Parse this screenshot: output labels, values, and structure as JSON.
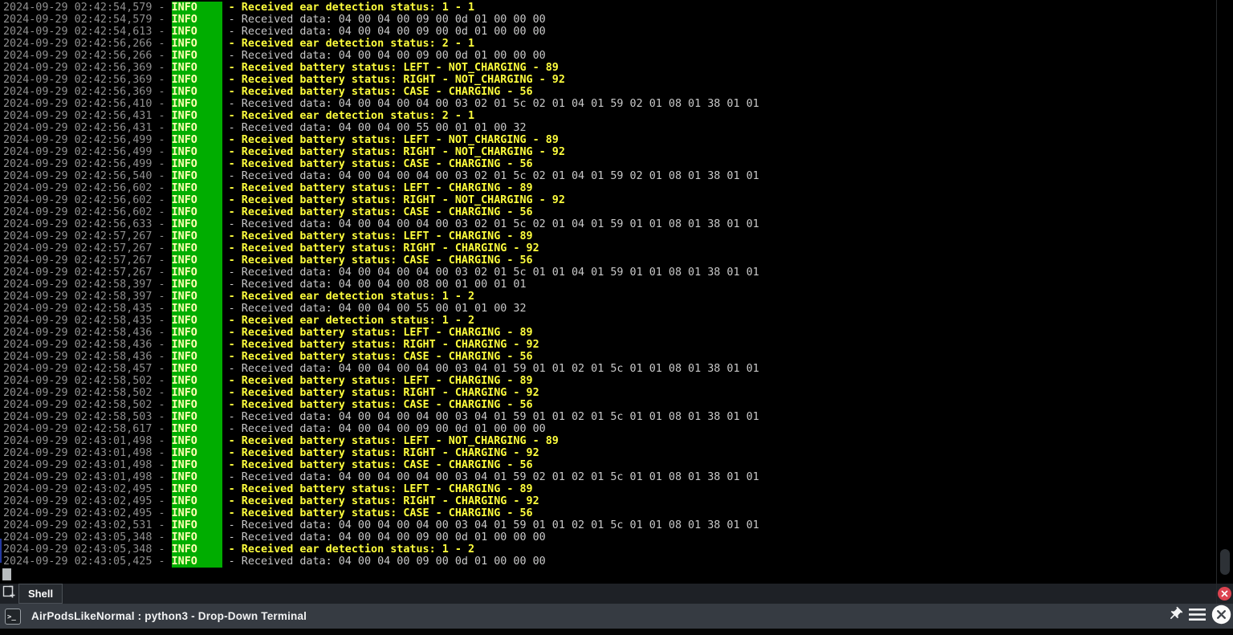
{
  "terminal": {
    "date": "2024-09-29",
    "level_label": "INFO",
    "rows": [
      {
        "t": "02:42:54,579",
        "k": "y",
        "m": "Received ear detection status: 1 - 1"
      },
      {
        "t": "02:42:54,579",
        "k": "g",
        "m": "Received data: 04 00 04 00 09 00 0d 01 00 00 00"
      },
      {
        "t": "02:42:54,613",
        "k": "g",
        "m": "Received data: 04 00 04 00 09 00 0d 01 00 00 00"
      },
      {
        "t": "02:42:56,266",
        "k": "y",
        "m": "Received ear detection status: 2 - 1"
      },
      {
        "t": "02:42:56,266",
        "k": "g",
        "m": "Received data: 04 00 04 00 09 00 0d 01 00 00 00"
      },
      {
        "t": "02:42:56,369",
        "k": "y",
        "m": "Received battery status: LEFT - NOT_CHARGING - 89"
      },
      {
        "t": "02:42:56,369",
        "k": "y",
        "m": "Received battery status: RIGHT - NOT_CHARGING - 92"
      },
      {
        "t": "02:42:56,369",
        "k": "y",
        "m": "Received battery status: CASE - CHARGING - 56"
      },
      {
        "t": "02:42:56,410",
        "k": "g",
        "m": "Received data: 04 00 04 00 04 00 03 02 01 5c 02 01 04 01 59 02 01 08 01 38 01 01"
      },
      {
        "t": "02:42:56,431",
        "k": "y",
        "m": "Received ear detection status: 2 - 1"
      },
      {
        "t": "02:42:56,431",
        "k": "g",
        "m": "Received data: 04 00 04 00 55 00 01 01 00 32"
      },
      {
        "t": "02:42:56,499",
        "k": "y",
        "m": "Received battery status: LEFT - NOT_CHARGING - 89"
      },
      {
        "t": "02:42:56,499",
        "k": "y",
        "m": "Received battery status: RIGHT - NOT_CHARGING - 92"
      },
      {
        "t": "02:42:56,499",
        "k": "y",
        "m": "Received battery status: CASE - CHARGING - 56"
      },
      {
        "t": "02:42:56,540",
        "k": "g",
        "m": "Received data: 04 00 04 00 04 00 03 02 01 5c 02 01 04 01 59 02 01 08 01 38 01 01"
      },
      {
        "t": "02:42:56,602",
        "k": "y",
        "m": "Received battery status: LEFT - CHARGING - 89"
      },
      {
        "t": "02:42:56,602",
        "k": "y",
        "m": "Received battery status: RIGHT - NOT_CHARGING - 92"
      },
      {
        "t": "02:42:56,602",
        "k": "y",
        "m": "Received battery status: CASE - CHARGING - 56"
      },
      {
        "t": "02:42:56,633",
        "k": "g",
        "m": "Received data: 04 00 04 00 04 00 03 02 01 5c 02 01 04 01 59 01 01 08 01 38 01 01"
      },
      {
        "t": "02:42:57,267",
        "k": "y",
        "m": "Received battery status: LEFT - CHARGING - 89"
      },
      {
        "t": "02:42:57,267",
        "k": "y",
        "m": "Received battery status: RIGHT - CHARGING - 92"
      },
      {
        "t": "02:42:57,267",
        "k": "y",
        "m": "Received battery status: CASE - CHARGING - 56"
      },
      {
        "t": "02:42:57,267",
        "k": "g",
        "m": "Received data: 04 00 04 00 04 00 03 02 01 5c 01 01 04 01 59 01 01 08 01 38 01 01"
      },
      {
        "t": "02:42:58,397",
        "k": "g",
        "m": "Received data: 04 00 04 00 08 00 01 00 01 01"
      },
      {
        "t": "02:42:58,397",
        "k": "y",
        "m": "Received ear detection status: 1 - 2"
      },
      {
        "t": "02:42:58,435",
        "k": "g",
        "m": "Received data: 04 00 04 00 55 00 01 01 00 32"
      },
      {
        "t": "02:42:58,435",
        "k": "y",
        "m": "Received ear detection status: 1 - 2"
      },
      {
        "t": "02:42:58,436",
        "k": "y",
        "m": "Received battery status: LEFT - CHARGING - 89"
      },
      {
        "t": "02:42:58,436",
        "k": "y",
        "m": "Received battery status: RIGHT - CHARGING - 92"
      },
      {
        "t": "02:42:58,436",
        "k": "y",
        "m": "Received battery status: CASE - CHARGING - 56"
      },
      {
        "t": "02:42:58,457",
        "k": "g",
        "m": "Received data: 04 00 04 00 04 00 03 04 01 59 01 01 02 01 5c 01 01 08 01 38 01 01"
      },
      {
        "t": "02:42:58,502",
        "k": "y",
        "m": "Received battery status: LEFT - CHARGING - 89"
      },
      {
        "t": "02:42:58,502",
        "k": "y",
        "m": "Received battery status: RIGHT - CHARGING - 92"
      },
      {
        "t": "02:42:58,502",
        "k": "y",
        "m": "Received battery status: CASE - CHARGING - 56"
      },
      {
        "t": "02:42:58,503",
        "k": "g",
        "m": "Received data: 04 00 04 00 04 00 03 04 01 59 01 01 02 01 5c 01 01 08 01 38 01 01"
      },
      {
        "t": "02:42:58,617",
        "k": "g",
        "m": "Received data: 04 00 04 00 09 00 0d 01 00 00 00"
      },
      {
        "t": "02:43:01,498",
        "k": "y",
        "m": "Received battery status: LEFT - NOT_CHARGING - 89"
      },
      {
        "t": "02:43:01,498",
        "k": "y",
        "m": "Received battery status: RIGHT - CHARGING - 92"
      },
      {
        "t": "02:43:01,498",
        "k": "y",
        "m": "Received battery status: CASE - CHARGING - 56"
      },
      {
        "t": "02:43:01,498",
        "k": "g",
        "m": "Received data: 04 00 04 00 04 00 03 04 01 59 02 01 02 01 5c 01 01 08 01 38 01 01"
      },
      {
        "t": "02:43:02,495",
        "k": "y",
        "m": "Received battery status: LEFT - CHARGING - 89"
      },
      {
        "t": "02:43:02,495",
        "k": "y",
        "m": "Received battery status: RIGHT - CHARGING - 92"
      },
      {
        "t": "02:43:02,495",
        "k": "y",
        "m": "Received battery status: CASE - CHARGING - 56"
      },
      {
        "t": "02:43:02,531",
        "k": "g",
        "m": "Received data: 04 00 04 00 04 00 03 04 01 59 01 01 02 01 5c 01 01 08 01 38 01 01"
      },
      {
        "t": "02:43:05,348",
        "k": "g",
        "m": "Received data: 04 00 04 00 09 00 0d 01 00 00 00"
      },
      {
        "t": "02:43:05,348",
        "k": "y",
        "m": "Received ear detection status: 1 - 2"
      },
      {
        "t": "02:43:05,425",
        "k": "g",
        "m": "Received data: 04 00 04 00 09 00 0d 01 00 00 00"
      }
    ]
  },
  "tabbar": {
    "tab_label": "Shell"
  },
  "statusbar": {
    "title": "AirPodsLikeNormal : python3 - Drop-Down Terminal",
    "prompt_glyph": ">_"
  },
  "icons": {
    "new_tab": "new-tab-icon",
    "close_tab": "close-tab-icon",
    "pin": "pin-icon",
    "menu": "hamburger-menu-icon",
    "close": "close-icon",
    "terminal": "terminal-prompt-icon"
  },
  "colors": {
    "term_bg": "#000000",
    "ts_gray": "#8f8f8f",
    "info_green": "#00ad00",
    "info_text": "#ffffb3",
    "msg_yellow": "#ffff3d",
    "msg_gray": "#c9c9c9",
    "cursor_gray": "#b8bcbe",
    "indicator_blue": "#2438a0",
    "close_red": "#dc4350"
  }
}
